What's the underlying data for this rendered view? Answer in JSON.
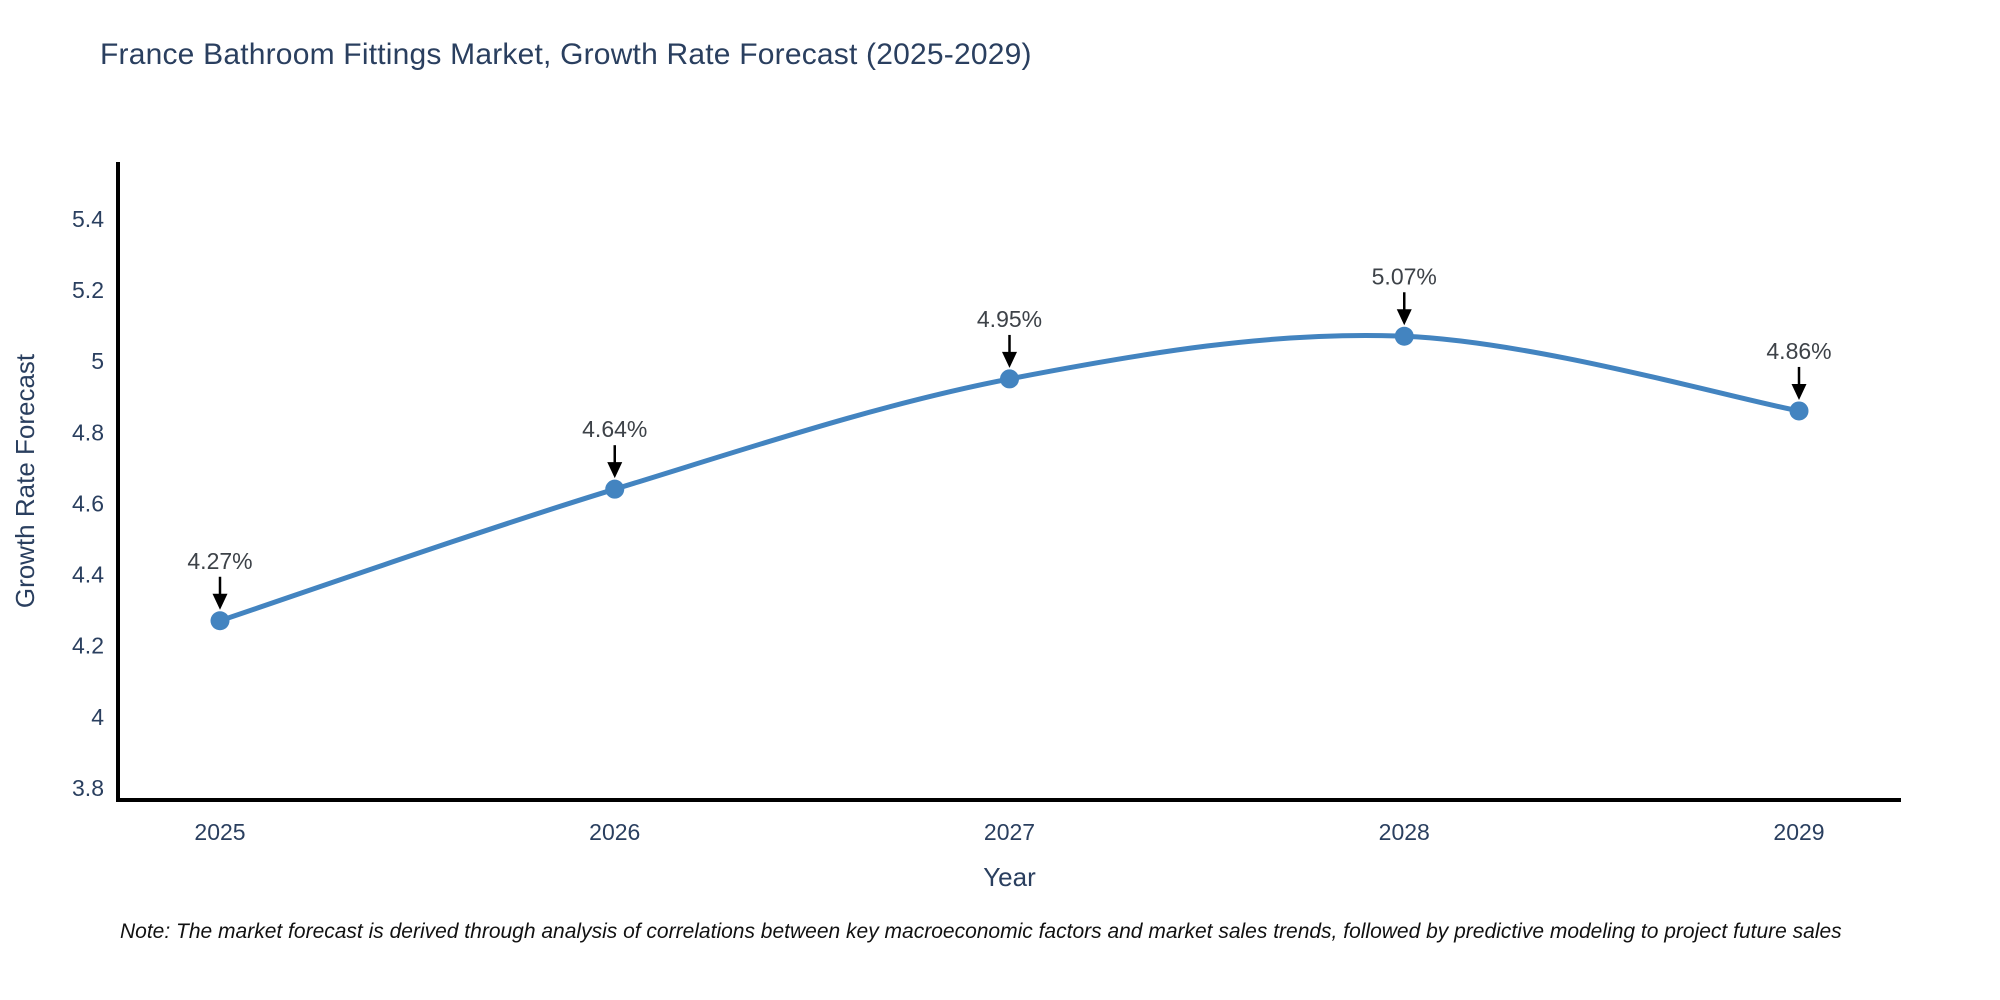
{
  "title": "France Bathroom Fittings Market, Growth Rate Forecast (2025-2029)",
  "note": "Note: The market forecast is derived through analysis of correlations between key macroeconomic factors and market sales trends, followed by predictive modeling to project future sales",
  "chart_data": {
    "type": "line",
    "title": "France Bathroom Fittings Market, Growth Rate Forecast (2025-2029)",
    "categories": [
      "2025",
      "2026",
      "2027",
      "2028",
      "2029"
    ],
    "values": [
      4.27,
      4.64,
      4.95,
      5.07,
      4.86
    ],
    "labels": [
      "4.27%",
      "4.64%",
      "4.95%",
      "5.07%",
      "4.86%"
    ],
    "xlabel": "Year",
    "ylabel": "Growth Rate Forecast",
    "yticks": [
      3.8,
      4,
      4.2,
      4.4,
      4.6,
      4.8,
      5,
      5.2,
      5.4
    ],
    "ytick_labels": [
      "3.8",
      "4",
      "4.2",
      "4.4",
      "4.6",
      "4.8",
      "5",
      "5.2",
      "5.4"
    ],
    "ylim": [
      3.766,
      5.56
    ],
    "grid": false,
    "legend": "none",
    "line_shape": "spline",
    "annotation_style": "text-above-with-down-arrow",
    "colors": {
      "line": "#4384c0",
      "marker": "#4384c0",
      "axis": "#000000",
      "title_text": "#2a3f5f",
      "tick_text": "#2a3f5f",
      "annotation_text": "#3d4248",
      "arrow": "#000000",
      "background": "#ffffff"
    }
  }
}
